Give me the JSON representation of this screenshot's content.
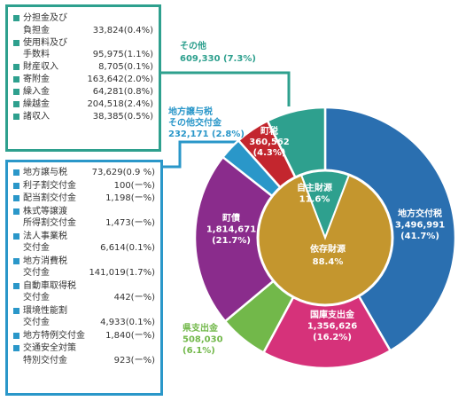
{
  "chart_data": {
    "type": "pie",
    "outer_slices": [
      {
        "label": "地方交付税",
        "value_text": "3,496,991",
        "pct": "(41.7%)",
        "value": 3496991,
        "percent": 41.7,
        "color": "#2a6fb0"
      },
      {
        "label": "国庫支出金",
        "value_text": "1,356,626",
        "pct": "(16.2%)",
        "value": 1356626,
        "percent": 16.2,
        "color": "#d6327a"
      },
      {
        "label": "県支出金",
        "value_text": "508,030",
        "pct": "(6.1%)",
        "value": 508030,
        "percent": 6.1,
        "color": "#72b84a"
      },
      {
        "label": "町債",
        "value_text": "1,814,671",
        "pct": "(21.7%)",
        "value": 1814671,
        "percent": 21.7,
        "color": "#8a2c8c"
      },
      {
        "label": "地方譲与税 その他交付金",
        "label_lines": [
          "地方譲与税",
          "その他交付金"
        ],
        "value_text": "232,171",
        "pct": "(2.8%)",
        "value": 232171,
        "percent": 2.8,
        "color": "#2a97c9"
      },
      {
        "label": "町税",
        "value_text": "360,562",
        "pct": "(4.3%)",
        "value": 360562,
        "percent": 4.3,
        "color": "#c3262e"
      },
      {
        "label": "その他",
        "value_text": "609,330",
        "pct": "(7.3%)",
        "value": 609330,
        "percent": 7.3,
        "color": "#2ea08e"
      }
    ],
    "inner_slices": [
      {
        "label": "自主財源",
        "pct": "11.6%",
        "percent": 11.6,
        "color": "#2ea08e"
      },
      {
        "label": "依存財源",
        "pct": "88.4%",
        "percent": 88.4,
        "color": "#c4962e"
      }
    ]
  },
  "other_breakdown": [
    {
      "lines": [
        "分担金及び",
        "負担金"
      ],
      "value": "33,824(0.4%)"
    },
    {
      "lines": [
        "使用料及び",
        "手数料"
      ],
      "value": "95,975(1.1%)"
    },
    {
      "lines": [
        "財産収入"
      ],
      "value": "8,705(0.1%)"
    },
    {
      "lines": [
        "寄附金"
      ],
      "value": "163,642(2.0%)"
    },
    {
      "lines": [
        "繰入金"
      ],
      "value": "64,281(0.8%)"
    },
    {
      "lines": [
        "繰越金"
      ],
      "value": "204,518(2.4%)"
    },
    {
      "lines": [
        "諸収入"
      ],
      "value": "38,385(0.5%)"
    }
  ],
  "grant_breakdown": [
    {
      "lines": [
        "地方譲与税"
      ],
      "value": "73,629(0.9 %)"
    },
    {
      "lines": [
        "利子割交付金"
      ],
      "value": "100(ー%)"
    },
    {
      "lines": [
        "配当割交付金"
      ],
      "value": "1,198(ー%)"
    },
    {
      "lines": [
        "株式等譲渡",
        "所得割交付金"
      ],
      "value": "1,473(ー%)"
    },
    {
      "lines": [
        "法人事業税",
        "交付金"
      ],
      "value": "6,614(0.1%)"
    },
    {
      "lines": [
        "地方消費税",
        "交付金"
      ],
      "value": "141,019(1.7%)"
    },
    {
      "lines": [
        "自動車取得税",
        "交付金"
      ],
      "value": "442(ー%)"
    },
    {
      "lines": [
        "環境性能割",
        "交付金"
      ],
      "value": "4,933(0.1%)"
    },
    {
      "lines": [
        "地方特例交付金"
      ],
      "value": "1,840(ー%)"
    },
    {
      "lines": [
        "交通安全対策",
        "特別交付金"
      ],
      "value": "923(ー%)"
    }
  ]
}
